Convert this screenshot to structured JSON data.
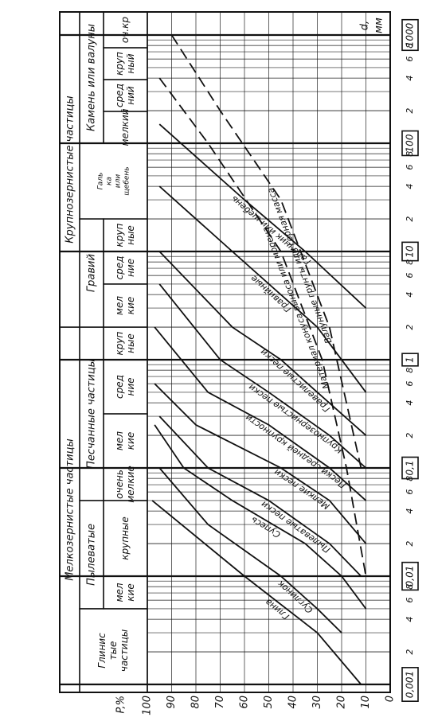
{
  "chart_data": {
    "type": "line",
    "ylabel": "P,%",
    "xlabel": [
      "d,",
      "мм"
    ],
    "xlog": true,
    "grid": true,
    "color": "#111111",
    "xlim": [
      0.001,
      1000
    ],
    "ylim": [
      0,
      100
    ],
    "yticks": [
      0,
      10,
      20,
      30,
      40,
      50,
      60,
      70,
      80,
      90,
      100
    ],
    "xticks": [
      {
        "value": 0.001,
        "label": "0,001"
      },
      {
        "value": 0.002,
        "label": "2"
      },
      {
        "value": 0.004,
        "label": "4"
      },
      {
        "value": 0.006,
        "label": "6"
      },
      {
        "value": 0.008,
        "label": "8"
      },
      {
        "value": 0.01,
        "label": "0,01"
      },
      {
        "value": 0.02,
        "label": "2"
      },
      {
        "value": 0.04,
        "label": "4"
      },
      {
        "value": 0.06,
        "label": "6"
      },
      {
        "value": 0.08,
        "label": "8"
      },
      {
        "value": 0.1,
        "label": "0,1"
      },
      {
        "value": 0.2,
        "label": "2"
      },
      {
        "value": 0.4,
        "label": "4"
      },
      {
        "value": 0.6,
        "label": "6"
      },
      {
        "value": 0.8,
        "label": "8"
      },
      1,
      {
        "value": 2,
        "label": "2"
      },
      {
        "value": 4,
        "label": "4"
      },
      {
        "value": 6,
        "label": "6"
      },
      {
        "value": 8,
        "label": "8"
      },
      10,
      {
        "value": 20,
        "label": "2"
      },
      {
        "value": 40,
        "label": "4"
      },
      {
        "value": 60,
        "label": "6"
      },
      {
        "value": 80,
        "label": "8"
      },
      100,
      {
        "value": 200,
        "label": "2"
      },
      {
        "value": 400,
        "label": "4"
      },
      {
        "value": 600,
        "label": "6"
      },
      {
        "value": 800,
        "label": "8"
      },
      1000
    ],
    "header": {
      "groups": [
        "Мелкозернистые частицы",
        "Крупнозернистые частицы"
      ],
      "subgroups": [
        [
          "Глинис",
          "тые",
          "частицы"
        ],
        [
          "Пылеватые"
        ],
        [
          "Песчанные частицы"
        ],
        [
          "Гравий"
        ],
        [
          "Галь",
          "ка",
          "или",
          "щебень"
        ],
        [
          "Камень или валуны"
        ]
      ],
      "cells": [
        [
          "мел",
          "кие"
        ],
        [
          "крупные"
        ],
        [
          "очень",
          "мелкие"
        ],
        [
          "мел",
          "кие"
        ],
        [
          "сред",
          "ние"
        ],
        [
          "круп",
          "ные"
        ],
        [
          "мел",
          "кие"
        ],
        [
          "сред",
          "ние"
        ],
        [
          "круп",
          "ные"
        ],
        [
          "мелкий"
        ],
        [
          "сред",
          "ний"
        ],
        [
          "круп",
          "ный"
        ],
        [
          "оч.кр"
        ]
      ]
    },
    "series": [
      {
        "name": "Глина",
        "dash": false,
        "x": [
          0.05,
          0.01,
          0.003,
          0.001
        ],
        "values": [
          98,
          60,
          30,
          12
        ]
      },
      {
        "name": "Суглинок",
        "dash": false,
        "x": [
          0.1,
          0.03,
          0.01,
          0.005,
          0.003
        ],
        "values": [
          95,
          75,
          45,
          30,
          20
        ]
      },
      {
        "name": "Супесь",
        "dash": false,
        "x": [
          0.25,
          0.1,
          0.05,
          0.02,
          0.01,
          0.005
        ],
        "values": [
          97,
          85,
          65,
          35,
          20,
          10
        ]
      },
      {
        "name": "Пылеватые пески",
        "dash": false,
        "x": [
          0.3,
          0.1,
          0.05,
          0.02,
          0.01
        ],
        "values": [
          95,
          75,
          50,
          25,
          12
        ]
      },
      {
        "name": "Мелкие пески",
        "dash": false,
        "x": [
          0.6,
          0.25,
          0.1,
          0.05,
          0.02
        ],
        "values": [
          97,
          80,
          45,
          25,
          10
        ]
      },
      {
        "name": "Пески средней крупности",
        "dash": false,
        "x": [
          2,
          0.5,
          0.25,
          0.1,
          0.05
        ],
        "values": [
          97,
          75,
          50,
          25,
          10
        ]
      },
      {
        "name": "Крупнозернистые пески",
        "dash": false,
        "x": [
          5,
          1,
          0.5,
          0.2,
          0.1
        ],
        "values": [
          95,
          70,
          50,
          25,
          10
        ]
      },
      {
        "name": "Гравелистые пески",
        "dash": false,
        "x": [
          10,
          2,
          1,
          0.5,
          0.2
        ],
        "values": [
          95,
          65,
          45,
          30,
          10
        ]
      },
      {
        "name": "Гравийные",
        "dash": false,
        "x": [
          40,
          10,
          2,
          0.5
        ],
        "values": [
          95,
          65,
          30,
          10
        ]
      },
      {
        "name": "Галечник или щебень",
        "dash": false,
        "x": [
          150,
          30,
          10,
          3
        ],
        "values": [
          95,
          60,
          35,
          10
        ]
      },
      {
        "name": "Материал конуса выноса или морена",
        "dash": true,
        "x": [
          400,
          100,
          10,
          1,
          0.1,
          0.01
        ],
        "values": [
          95,
          75,
          45,
          28,
          18,
          10
        ]
      },
      {
        "name": "Валунные грунты или горная масса",
        "dash": true,
        "x": [
          1000,
          200,
          30,
          2,
          0.1
        ],
        "values": [
          90,
          70,
          45,
          25,
          12
        ]
      }
    ]
  }
}
